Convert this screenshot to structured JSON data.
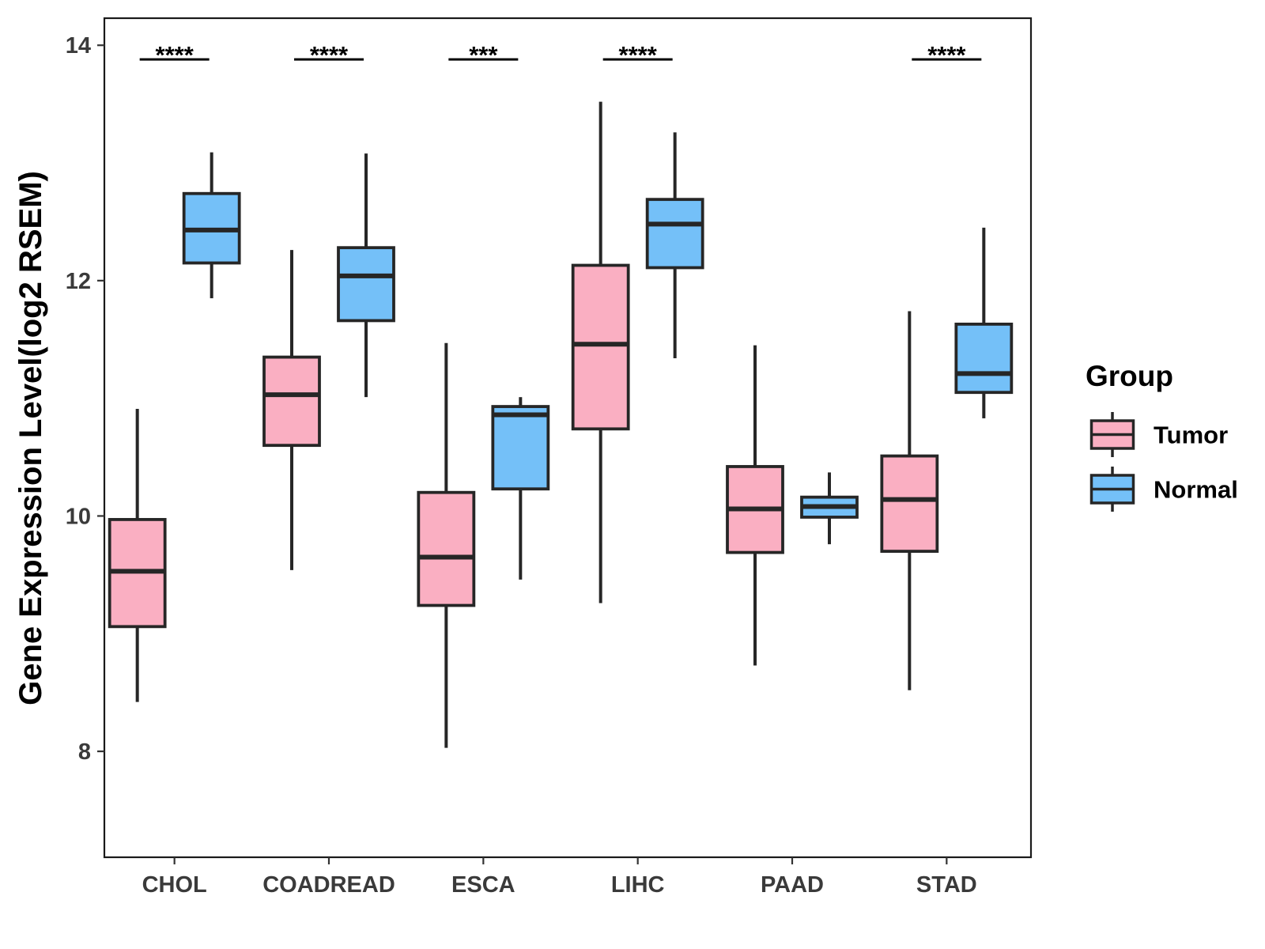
{
  "chart_data": {
    "type": "boxplot",
    "title": "",
    "xlabel": "",
    "ylabel": "Gene Expression Level(log2 RSEM)",
    "ylim": [
      7.1,
      14.23
    ],
    "yticks": [
      8,
      10,
      12,
      14
    ],
    "grid": false,
    "categories": [
      "CHOL",
      "COADREAD",
      "ESCA",
      "LIHC",
      "PAAD",
      "STAD"
    ],
    "legend": {
      "title": "Group",
      "placement": "right",
      "entries": [
        "Tumor",
        "Normal"
      ]
    },
    "series": [
      {
        "name": "Tumor",
        "color": "#FAAFC2",
        "boxes": [
          {
            "whisker_low": 8.42,
            "q1": 9.06,
            "median": 9.53,
            "q3": 9.97,
            "whisker_high": 10.91
          },
          {
            "whisker_low": 9.54,
            "q1": 10.6,
            "median": 11.03,
            "q3": 11.35,
            "whisker_high": 12.26
          },
          {
            "whisker_low": 8.03,
            "q1": 9.24,
            "median": 9.65,
            "q3": 10.2,
            "whisker_high": 11.47
          },
          {
            "whisker_low": 9.26,
            "q1": 10.74,
            "median": 11.46,
            "q3": 12.13,
            "whisker_high": 13.52
          },
          {
            "whisker_low": 8.73,
            "q1": 9.69,
            "median": 10.06,
            "q3": 10.42,
            "whisker_high": 11.45
          },
          {
            "whisker_low": 8.52,
            "q1": 9.7,
            "median": 10.14,
            "q3": 10.51,
            "whisker_high": 11.74
          }
        ]
      },
      {
        "name": "Normal",
        "color": "#74C0F8",
        "boxes": [
          {
            "whisker_low": 11.85,
            "q1": 12.15,
            "median": 12.43,
            "q3": 12.74,
            "whisker_high": 13.09
          },
          {
            "whisker_low": 11.01,
            "q1": 11.66,
            "median": 12.04,
            "q3": 12.28,
            "whisker_high": 13.08
          },
          {
            "whisker_low": 9.46,
            "q1": 10.23,
            "median": 10.86,
            "q3": 10.93,
            "whisker_high": 11.01
          },
          {
            "whisker_low": 11.34,
            "q1": 12.11,
            "median": 12.48,
            "q3": 12.69,
            "whisker_high": 13.26
          },
          {
            "whisker_low": 9.76,
            "q1": 9.99,
            "median": 10.08,
            "q3": 10.16,
            "whisker_high": 10.37
          },
          {
            "whisker_low": 10.83,
            "q1": 11.05,
            "median": 11.21,
            "q3": 11.63,
            "whisker_high": 12.45
          }
        ]
      }
    ],
    "annotations": [
      {
        "category": "CHOL",
        "label": "****",
        "y": 13.88
      },
      {
        "category": "COADREAD",
        "label": "****",
        "y": 13.88
      },
      {
        "category": "ESCA",
        "label": "***",
        "y": 13.88
      },
      {
        "category": "LIHC",
        "label": "****",
        "y": 13.88
      },
      {
        "category": "PAAD",
        "label": "",
        "y": 13.88
      },
      {
        "category": "STAD",
        "label": "****",
        "y": 13.88
      }
    ]
  }
}
